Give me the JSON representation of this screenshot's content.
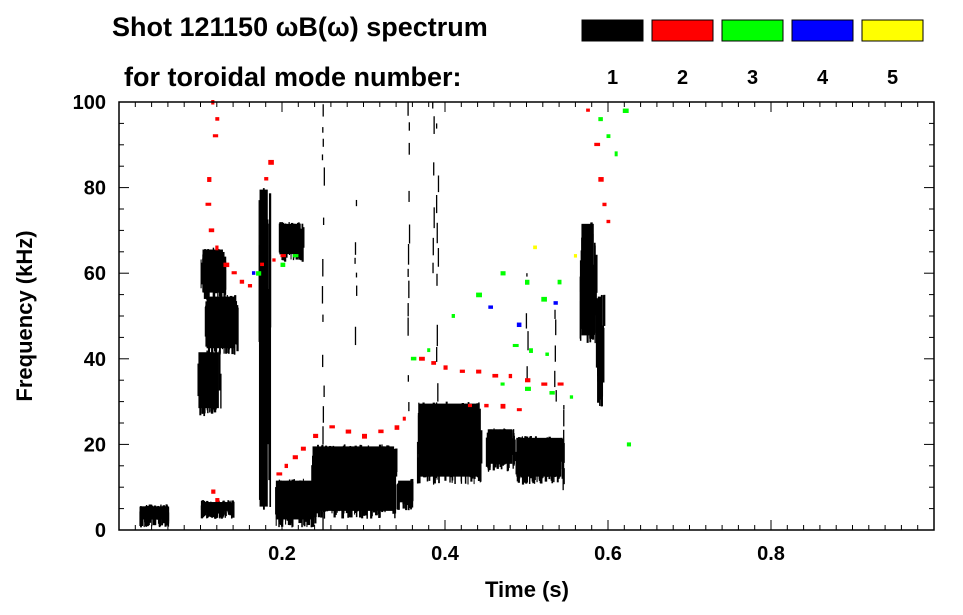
{
  "chart_data": {
    "type": "scatter",
    "title_line1": "Shot 121150 ωB(ω) spectrum",
    "title_line2": "for toroidal mode number:",
    "xlabel": "Time (s)",
    "ylabel": "Frequency (kHz)",
    "xlim": [
      0.0,
      1.0
    ],
    "ylim": [
      0,
      100
    ],
    "x_ticks": [
      0.2,
      0.4,
      0.6,
      0.8
    ],
    "x_tick_labels": [
      "0.2",
      "0.4",
      "0.6",
      "0.8"
    ],
    "y_ticks": [
      0,
      20,
      40,
      60,
      80,
      100
    ],
    "y_tick_labels": [
      "0",
      "20",
      "40",
      "60",
      "80",
      "100"
    ],
    "legend": {
      "placement": "top-right",
      "entries": [
        {
          "label": "1",
          "color": "#000000"
        },
        {
          "label": "2",
          "color": "#ff0000"
        },
        {
          "label": "3",
          "color": "#00ff00"
        },
        {
          "label": "4",
          "color": "#0000ff"
        },
        {
          "label": "5",
          "color": "#ffff00"
        }
      ]
    },
    "series": [
      {
        "name": "1",
        "color": "#000000",
        "blobs": [
          {
            "t0": 0.095,
            "t1": 0.125,
            "f0": 28,
            "f1": 42
          },
          {
            "t0": 0.105,
            "t1": 0.145,
            "f0": 42,
            "f1": 55
          },
          {
            "t0": 0.1,
            "t1": 0.13,
            "f0": 55,
            "f1": 66
          },
          {
            "t0": 0.1,
            "t1": 0.14,
            "f0": 4,
            "f1": 7
          },
          {
            "t0": 0.17,
            "t1": 0.185,
            "f0": 5,
            "f1": 80
          },
          {
            "t0": 0.195,
            "t1": 0.225,
            "f0": 64,
            "f1": 72
          },
          {
            "t0": 0.19,
            "t1": 0.24,
            "f0": 2,
            "f1": 12
          },
          {
            "t0": 0.235,
            "t1": 0.34,
            "f0": 4,
            "f1": 20
          },
          {
            "t0": 0.34,
            "t1": 0.36,
            "f0": 6,
            "f1": 12
          },
          {
            "t0": 0.365,
            "t1": 0.445,
            "f0": 12,
            "f1": 30
          },
          {
            "t0": 0.45,
            "t1": 0.485,
            "f0": 15,
            "f1": 24
          },
          {
            "t0": 0.485,
            "t1": 0.545,
            "f0": 12,
            "f1": 22
          },
          {
            "t0": 0.565,
            "t1": 0.585,
            "f0": 45,
            "f1": 72
          },
          {
            "t0": 0.585,
            "t1": 0.595,
            "f0": 30,
            "f1": 55
          },
          {
            "t0": 0.025,
            "t1": 0.06,
            "f0": 2,
            "f1": 6
          }
        ],
        "streaks": [
          {
            "t": 0.25,
            "f0": 0,
            "f1": 100
          },
          {
            "t": 0.29,
            "f0": 30,
            "f1": 85
          },
          {
            "t": 0.355,
            "f0": 20,
            "f1": 100
          },
          {
            "t": 0.385,
            "f0": 60,
            "f1": 100
          },
          {
            "t": 0.39,
            "f0": 30,
            "f1": 95
          },
          {
            "t": 0.5,
            "f0": 35,
            "f1": 60
          },
          {
            "t": 0.535,
            "f0": 30,
            "f1": 55
          },
          {
            "t": 0.545,
            "f0": 0,
            "f1": 30
          }
        ]
      },
      {
        "name": "2",
        "color": "#ff0000",
        "points": [
          [
            0.115,
            100
          ],
          [
            0.12,
            96
          ],
          [
            0.117,
            92
          ],
          [
            0.11,
            82
          ],
          [
            0.108,
            76
          ],
          [
            0.112,
            70
          ],
          [
            0.12,
            66
          ],
          [
            0.13,
            62
          ],
          [
            0.14,
            60
          ],
          [
            0.15,
            58
          ],
          [
            0.16,
            57
          ],
          [
            0.175,
            62
          ],
          [
            0.19,
            63
          ],
          [
            0.2,
            64
          ],
          [
            0.185,
            86
          ],
          [
            0.18,
            82
          ],
          [
            0.115,
            9
          ],
          [
            0.12,
            7
          ],
          [
            0.195,
            13
          ],
          [
            0.205,
            15
          ],
          [
            0.215,
            17
          ],
          [
            0.225,
            19
          ],
          [
            0.24,
            22
          ],
          [
            0.26,
            24
          ],
          [
            0.28,
            23
          ],
          [
            0.3,
            22
          ],
          [
            0.32,
            23
          ],
          [
            0.34,
            24
          ],
          [
            0.35,
            26
          ],
          [
            0.37,
            40
          ],
          [
            0.385,
            39
          ],
          [
            0.4,
            38
          ],
          [
            0.42,
            37
          ],
          [
            0.44,
            37
          ],
          [
            0.46,
            36
          ],
          [
            0.48,
            36
          ],
          [
            0.5,
            35
          ],
          [
            0.52,
            34
          ],
          [
            0.54,
            34
          ],
          [
            0.43,
            29
          ],
          [
            0.45,
            29
          ],
          [
            0.47,
            29
          ],
          [
            0.49,
            28
          ],
          [
            0.575,
            98
          ],
          [
            0.585,
            90
          ],
          [
            0.59,
            82
          ],
          [
            0.595,
            76
          ],
          [
            0.6,
            72
          ]
        ]
      },
      {
        "name": "3",
        "color": "#00ff00",
        "points": [
          [
            0.17,
            60
          ],
          [
            0.2,
            62
          ],
          [
            0.215,
            64
          ],
          [
            0.36,
            40
          ],
          [
            0.38,
            42
          ],
          [
            0.41,
            50
          ],
          [
            0.44,
            55
          ],
          [
            0.47,
            60
          ],
          [
            0.5,
            58
          ],
          [
            0.52,
            54
          ],
          [
            0.54,
            58
          ],
          [
            0.485,
            43
          ],
          [
            0.505,
            42
          ],
          [
            0.525,
            41
          ],
          [
            0.47,
            34
          ],
          [
            0.5,
            33
          ],
          [
            0.53,
            32
          ],
          [
            0.555,
            31
          ],
          [
            0.59,
            96
          ],
          [
            0.6,
            92
          ],
          [
            0.61,
            88
          ],
          [
            0.62,
            98
          ],
          [
            0.625,
            20
          ]
        ]
      },
      {
        "name": "4",
        "color": "#0000ff",
        "points": [
          [
            0.165,
            60
          ],
          [
            0.49,
            48
          ],
          [
            0.535,
            53
          ],
          [
            0.455,
            52
          ]
        ]
      },
      {
        "name": "5",
        "color": "#ffff00",
        "points": [
          [
            0.51,
            66
          ],
          [
            0.56,
            64
          ]
        ]
      }
    ]
  }
}
